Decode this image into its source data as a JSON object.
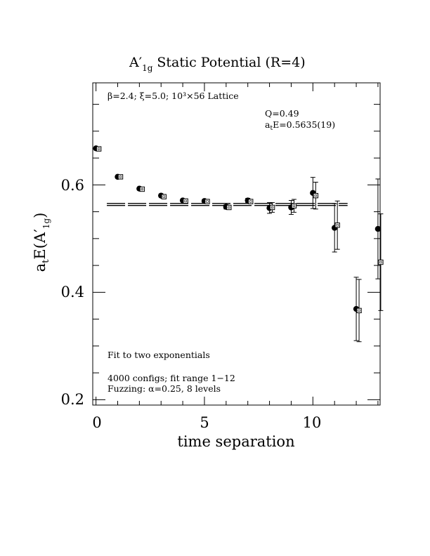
{
  "chart_data": {
    "type": "scatter",
    "title_main": "A",
    "title_prime": "′",
    "title_sub": "1g",
    "title_rest": "Static Potential (R=4)",
    "xlabel": "time separation",
    "ylabel_main": "a",
    "ylabel_t": "t",
    "ylabel_mid": "E(A",
    "ylabel_prime": "′",
    "ylabel_sub": "1g",
    "ylabel_close": ")",
    "xlim": [
      -0.15,
      13.1
    ],
    "ylim": [
      0.19,
      0.79
    ],
    "x_ticks": [
      0,
      5,
      10
    ],
    "x_tick_labels": [
      "0",
      "5",
      "10"
    ],
    "y_ticks": [
      0.2,
      0.4,
      0.6
    ],
    "y_tick_labels": [
      "0.2",
      "0.4",
      "0.6"
    ],
    "annotations": {
      "lattice": "β=2.4; ξ=5.0; 10³×56 Lattice",
      "q": "Q=0.49",
      "energy_a": "a",
      "energy_t": "t",
      "energy_rest": "E=0.5635(19)",
      "fit": "Fit to two exponentials",
      "configs": "4000 configs; fit range 1−12",
      "fuzzing": "Fuzzing: α=0.25, 8 levels"
    },
    "fit_line": {
      "x_range": [
        0.5,
        11.6
      ],
      "value": 0.5635,
      "error": 0.0019
    },
    "series": [
      {
        "marker": "circle",
        "x": [
          0,
          1,
          2,
          3,
          4,
          5,
          6,
          7,
          8,
          9,
          10,
          11,
          12,
          13
        ],
        "y": [
          0.668,
          0.615,
          0.593,
          0.58,
          0.571,
          0.57,
          0.559,
          0.571,
          0.557,
          0.558,
          0.585,
          0.52,
          0.369,
          0.518
        ],
        "err": [
          0.001,
          0.001,
          0.001,
          0.002,
          0.002,
          0.003,
          0.004,
          0.004,
          0.01,
          0.013,
          0.029,
          0.045,
          0.059,
          0.093
        ]
      },
      {
        "marker": "square",
        "x": [
          0,
          1,
          2,
          3,
          4,
          5,
          6,
          7,
          8,
          9,
          10,
          11,
          12,
          13
        ],
        "y": [
          0.667,
          0.615,
          0.592,
          0.578,
          0.57,
          0.569,
          0.558,
          0.569,
          0.558,
          0.561,
          0.58,
          0.525,
          0.366,
          0.456
        ],
        "err": [
          0.001,
          0.001,
          0.001,
          0.002,
          0.002,
          0.003,
          0.004,
          0.004,
          0.009,
          0.012,
          0.025,
          0.045,
          0.058,
          0.09
        ]
      }
    ]
  }
}
